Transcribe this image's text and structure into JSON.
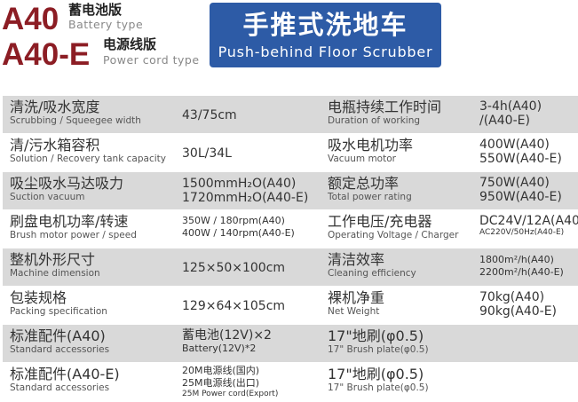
{
  "header": {
    "model_a40": "A40",
    "model_a40_cn": "蓄电池版",
    "model_a40_en": "Battery type",
    "model_a40e": "A40-E",
    "model_a40e_cn": "电源线版",
    "model_a40e_en": "Power cord type",
    "title_cn": "手推式洗地车",
    "title_en": "Push-behind Floor Scrubber",
    "brand_red": "#8c1d24",
    "banner_blue": "#2d5ba6"
  },
  "rows": [
    {
      "l_cn": "清洗/吸水宽度",
      "l_en": "Scrubbing / Squeegee width",
      "l_val": [
        "43/75cm"
      ],
      "r_cn": "电瓶持续工作时间",
      "r_en": "Duration of working",
      "r_val": [
        "3-4h(A40)",
        "/(A40-E)"
      ]
    },
    {
      "l_cn": "清/污水箱容积",
      "l_en": "Solution / Recovery tank capacity",
      "l_val": [
        "30L/34L"
      ],
      "r_cn": "吸水电机功率",
      "r_en": "Vacuum motor",
      "r_val": [
        "400W(A40)",
        "550W(A40-E)"
      ]
    },
    {
      "l_cn": "吸尘吸水马达吸力",
      "l_en": "Suction vacuum",
      "l_val": [
        "1500mmH₂O(A40)",
        "1720mmH₂O(A40-E)"
      ],
      "r_cn": "额定总功率",
      "r_en": "Total power rating",
      "r_val": [
        "750W(A40)",
        "950W(A40-E)"
      ]
    },
    {
      "l_cn": "刷盘电机功率/转速",
      "l_en": "Brush motor power / speed",
      "l_val": [
        "350W / 180rpm(A40)",
        "400W / 140rpm(A40-E)"
      ],
      "r_cn": "工作电压/充电器",
      "r_en": "Operating Voltage / Charger",
      "r_val": [
        "DC24V/12A(A40)",
        "AC220V/50Hz(A40-E)"
      ]
    },
    {
      "l_cn": "整机外形尺寸",
      "l_en": "Machine dimension",
      "l_val": [
        "125×50×100cm"
      ],
      "r_cn": "清洁效率",
      "r_en": "Cleaning efficiency",
      "r_val": [
        "1800m²/h(A40)",
        "2200m²/h(A40-E)"
      ]
    },
    {
      "l_cn": "包装规格",
      "l_en": "Packing specification",
      "l_val": [
        "129×64×105cm"
      ],
      "r_cn": "裸机净重",
      "r_en": "Net Weight",
      "r_val": [
        "70kg(A40)",
        "90kg(A40-E)"
      ]
    },
    {
      "l_cn": "标准配件(A40)",
      "l_en": "Standard accessories",
      "l_val": [
        "蓄电池(12V)×2",
        "Battery(12V)*2"
      ],
      "r_cn": "17\"地刷(φ0.5)",
      "r_en": "17\" Brush plate(φ0.5)",
      "r_val": []
    },
    {
      "l_cn": "标准配件(A40-E)",
      "l_en": "Standard accessories",
      "l_val": [
        "20M电源线(国内)",
        "25M电源线(出口)",
        "25M Power cord(Export)"
      ],
      "r_cn": "17\"地刷(φ0.5)",
      "r_en": "17\" Brush plate(φ0.5)",
      "r_val": []
    }
  ]
}
